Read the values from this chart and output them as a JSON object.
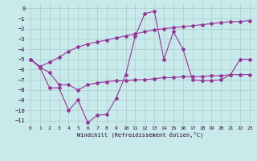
{
  "bg_color": "#c8eaea",
  "grid_color": "#a8cccc",
  "line_color": "#993399",
  "xlabel": "Windchill (Refroidissement éolien,°C)",
  "xlim": [
    -0.5,
    23.5
  ],
  "ylim": [
    -11.5,
    0.5
  ],
  "x_ticks": [
    0,
    1,
    2,
    3,
    4,
    5,
    6,
    7,
    8,
    9,
    10,
    11,
    12,
    13,
    14,
    15,
    16,
    17,
    18,
    19,
    20,
    21,
    22,
    23
  ],
  "y_ticks": [
    0,
    -1,
    -2,
    -3,
    -4,
    -5,
    -6,
    -7,
    -8,
    -9,
    -10,
    -11
  ],
  "line1_x": [
    0,
    1,
    2,
    3,
    4,
    5,
    6,
    7,
    8,
    9,
    10,
    11,
    12,
    13,
    14,
    15,
    16,
    17,
    18,
    19,
    20,
    21,
    22,
    23
  ],
  "line1_y": [
    -5.0,
    -5.7,
    -5.3,
    -4.8,
    -4.2,
    -3.8,
    -3.5,
    -3.3,
    -3.1,
    -2.9,
    -2.7,
    -2.5,
    -2.3,
    -2.1,
    -2.0,
    -1.9,
    -1.8,
    -1.7,
    -1.6,
    -1.5,
    -1.4,
    -1.3,
    -1.3,
    -1.2
  ],
  "line2_x": [
    0,
    1,
    2,
    3,
    4,
    5,
    6,
    7,
    8,
    9,
    10,
    11,
    12,
    13,
    14,
    15,
    16,
    17,
    18,
    19,
    20,
    21,
    22,
    23
  ],
  "line2_y": [
    -5.0,
    -5.8,
    -6.3,
    -7.5,
    -7.5,
    -8.0,
    -7.5,
    -7.3,
    -7.2,
    -7.1,
    -7.1,
    -7.0,
    -7.0,
    -6.9,
    -6.8,
    -6.8,
    -6.7,
    -6.7,
    -6.7,
    -6.6,
    -6.6,
    -6.5,
    -6.5,
    -6.5
  ],
  "line3_x": [
    0,
    1,
    2,
    3,
    4,
    5,
    6,
    7,
    8,
    9,
    10,
    11,
    12,
    13,
    14,
    15,
    16,
    17,
    18,
    19,
    20,
    21,
    22,
    23
  ],
  "line3_y": [
    -5.0,
    -5.8,
    -7.8,
    -7.8,
    -10.0,
    -9.0,
    -11.2,
    -10.5,
    -10.4,
    -8.8,
    -6.5,
    -2.7,
    -0.5,
    -0.3,
    -5.0,
    -2.3,
    -4.0,
    -7.0,
    -7.1,
    -7.1,
    -7.0,
    -6.5,
    -5.0,
    -5.0
  ]
}
